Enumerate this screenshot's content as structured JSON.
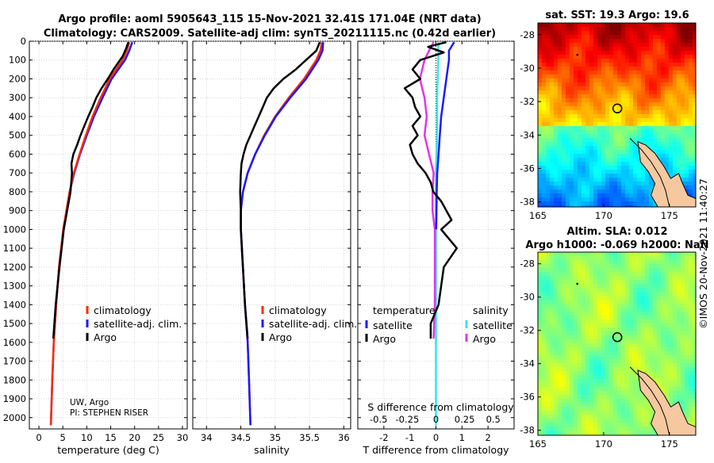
{
  "figure": {
    "title_line1": "Argo profile: aoml 5905643_115 15-Nov-2021 32.41S 171.04E (NRT data)",
    "title_line2": "Climatology: CARS2009. Satellite-adj clim: synTS_20211115.nc (0.42d earlier)",
    "credit_line1": "UW, Argo",
    "credit_line2": "PI: STEPHEN RISER",
    "stamp": "©IMOS 20-Nov-2021 11:40:27"
  },
  "colors": {
    "climatology": "#ff2a00",
    "satellite": "#1a1aff",
    "argo": "#000000",
    "satellite_s": "#33e6e6",
    "argo_s": "#e633e6",
    "land": "#f5c8a0"
  },
  "chart_data": [
    {
      "id": "temperature_profile",
      "type": "line",
      "xlabel": "temperature (deg C)",
      "ylabel": "",
      "xlim": [
        -2,
        31
      ],
      "ylim": [
        2060,
        0
      ],
      "xticks": [
        "0",
        "5",
        "10",
        "15",
        "20",
        "25",
        "30"
      ],
      "xtick_values": [
        0,
        5,
        10,
        15,
        20,
        25,
        30
      ],
      "yticks": [
        "0",
        "100",
        "200",
        "300",
        "400",
        "500",
        "600",
        "700",
        "800",
        "900",
        "1000",
        "1100",
        "1200",
        "1300",
        "1400",
        "1500",
        "1600",
        "1700",
        "1800",
        "1900",
        "2000"
      ],
      "ytick_values": [
        0,
        100,
        200,
        300,
        400,
        500,
        600,
        700,
        800,
        900,
        1000,
        1100,
        1200,
        1300,
        1400,
        1500,
        1600,
        1700,
        1800,
        1900,
        2000
      ],
      "legend": [
        "climatology",
        "satellite-adj. clim.",
        "Argo"
      ],
      "series": [
        {
          "name": "climatology",
          "depth": [
            5,
            50,
            100,
            200,
            300,
            400,
            500,
            600,
            700,
            800,
            1000,
            1200,
            1400,
            1600,
            1800,
            2040
          ],
          "values": [
            18.9,
            18.4,
            17.5,
            14.8,
            12.9,
            11.2,
            9.8,
            8.5,
            7.3,
            6.4,
            5.1,
            4.2,
            3.6,
            3.1,
            2.8,
            2.5
          ]
        },
        {
          "name": "satellite-adj. clim.",
          "depth": [
            5,
            50,
            100,
            200,
            300,
            400,
            500,
            600,
            700,
            800,
            1000,
            1200,
            1400,
            1600,
            1800,
            2040
          ],
          "values": [
            19.5,
            18.9,
            18.0,
            15.2,
            13.3,
            11.5,
            10.0,
            8.6,
            7.4,
            6.4,
            5.1,
            4.2,
            3.6,
            3.1,
            2.8,
            2.5
          ]
        },
        {
          "name": "Argo",
          "depth": [
            5,
            40,
            80,
            150,
            200,
            250,
            300,
            350,
            400,
            450,
            500,
            550,
            600,
            650,
            700,
            800,
            1000,
            1200,
            1400,
            1580
          ],
          "values": [
            18.7,
            18.2,
            17.5,
            15.6,
            14.4,
            13.1,
            12.0,
            11.2,
            10.3,
            9.5,
            8.7,
            8.0,
            7.2,
            6.8,
            6.9,
            6.6,
            5.2,
            4.3,
            3.5,
            3.0
          ]
        }
      ]
    },
    {
      "id": "salinity_profile",
      "type": "line",
      "xlabel": "salinity",
      "ylabel": "",
      "xlim": [
        33.8,
        36.1
      ],
      "ylim": [
        2060,
        0
      ],
      "xticks": [
        "34",
        "34.5",
        "35",
        "35.5",
        "36"
      ],
      "xtick_values": [
        34,
        34.5,
        35,
        35.5,
        36
      ],
      "legend": [
        "climatology",
        "satellite-adj. clim.",
        "Argo"
      ],
      "series": [
        {
          "name": "climatology",
          "depth": [
            5,
            50,
            100,
            200,
            300,
            400,
            500,
            600,
            700,
            800,
            900,
            1000,
            1200,
            1400,
            1600,
            1800,
            2040
          ],
          "values": [
            35.68,
            35.66,
            35.6,
            35.42,
            35.2,
            35.0,
            34.84,
            34.71,
            34.6,
            34.53,
            34.5,
            34.5,
            34.53,
            34.56,
            34.6,
            34.62,
            34.64
          ]
        },
        {
          "name": "satellite-adj. clim.",
          "depth": [
            5,
            50,
            100,
            200,
            300,
            400,
            500,
            600,
            700,
            800,
            900,
            1000,
            1200,
            1400,
            1600,
            1800,
            2040
          ],
          "values": [
            35.7,
            35.69,
            35.63,
            35.45,
            35.22,
            35.01,
            34.85,
            34.71,
            34.6,
            34.53,
            34.5,
            34.5,
            34.53,
            34.56,
            34.6,
            34.62,
            34.64
          ]
        },
        {
          "name": "Argo",
          "depth": [
            5,
            50,
            100,
            150,
            200,
            250,
            300,
            350,
            400,
            450,
            500,
            550,
            600,
            650,
            700,
            800,
            900,
            1000,
            1200,
            1400,
            1580
          ],
          "values": [
            35.65,
            35.6,
            35.45,
            35.3,
            35.12,
            34.98,
            34.88,
            34.82,
            34.76,
            34.7,
            34.64,
            34.58,
            34.54,
            34.51,
            34.5,
            34.49,
            34.5,
            34.5,
            34.53,
            34.56,
            34.6
          ]
        }
      ]
    },
    {
      "id": "difference_profile",
      "type": "line",
      "xlabel": "T difference from climatology",
      "xlabel_top": "S difference from climatology",
      "xlim": [
        -3,
        3
      ],
      "ylim": [
        2060,
        0
      ],
      "xticks": [
        "-2",
        "-1",
        "0",
        "1",
        "2"
      ],
      "xtick_values": [
        -2,
        -1,
        0,
        1,
        2
      ],
      "xticks_s": [
        "-0.5",
        "-0.25",
        "0",
        "0.25",
        "0.5"
      ],
      "xtick_values_s": [
        -0.5,
        -0.25,
        0,
        0.25,
        0.5
      ],
      "legend_t_title": "temperature",
      "legend_s_title": "salinity",
      "legend": [
        "satellite",
        "Argo",
        "satellite",
        "Argo"
      ],
      "series": [
        {
          "name": "T satellite",
          "depth": [
            5,
            50,
            100,
            200,
            300,
            400,
            500,
            600,
            700,
            800,
            900,
            1000
          ],
          "values": [
            0.7,
            0.5,
            0.5,
            0.4,
            0.3,
            0.2,
            0.15,
            0.1,
            0.05,
            0.03,
            0.02,
            0.01
          ]
        },
        {
          "name": "T Argo",
          "depth": [
            5,
            30,
            60,
            100,
            150,
            200,
            250,
            300,
            350,
            400,
            450,
            500,
            550,
            600,
            650,
            700,
            750,
            800,
            850,
            900,
            950,
            1000,
            1100,
            1200,
            1300,
            1400,
            1500,
            1580
          ],
          "values": [
            0.4,
            -0.3,
            0.3,
            -0.6,
            -0.9,
            -0.6,
            -1.2,
            -0.9,
            -0.8,
            -0.6,
            -0.9,
            -0.7,
            -1.0,
            -0.9,
            -0.7,
            -0.4,
            -0.2,
            -0.1,
            0.2,
            0.4,
            0.6,
            0.2,
            0.8,
            0.3,
            0.2,
            0.1,
            -0.2,
            -0.2
          ]
        },
        {
          "name": "S satellite",
          "depth": [
            5,
            100,
            300,
            500,
            700,
            900,
            1100,
            1300,
            1500,
            1700,
            1900,
            2040
          ],
          "values": [
            0.02,
            0.02,
            0.01,
            0.01,
            0.0,
            0.0,
            0.0,
            0.0,
            0.0,
            0.0,
            0.0,
            0.0
          ]
        },
        {
          "name": "S Argo",
          "depth": [
            5,
            50,
            100,
            200,
            300,
            400,
            500,
            600,
            700,
            800,
            900,
            1000,
            1200,
            1400,
            1580
          ],
          "values": [
            -0.02,
            -0.06,
            -0.1,
            -0.14,
            -0.1,
            -0.08,
            -0.1,
            -0.06,
            -0.02,
            -0.03,
            -0.03,
            -0.01,
            -0.01,
            -0.01,
            -0.02
          ]
        }
      ]
    },
    {
      "id": "sst_map",
      "type": "heatmap",
      "title": "sat. SST: 19.3 Argo: 19.6",
      "xlim": [
        165,
        177
      ],
      "ylim": [
        -38.3,
        -27.3
      ],
      "xticks": [
        "165",
        "170",
        "175"
      ],
      "xtick_values": [
        165,
        170,
        175
      ],
      "yticks": [
        "-28",
        "-30",
        "-32",
        "-34",
        "-36",
        "-38"
      ],
      "ytick_values": [
        -28,
        -30,
        -32,
        -34,
        -36,
        -38
      ],
      "marker": {
        "lon": 171.04,
        "lat": -32.41
      }
    },
    {
      "id": "sla_map",
      "type": "heatmap",
      "title_line1": "Altim. SLA: 0.012",
      "title_line2": "Argo h1000: -0.069 h2000: NaN",
      "xlim": [
        165,
        177
      ],
      "ylim": [
        -38.3,
        -27.3
      ],
      "xticks": [
        "165",
        "170",
        "175"
      ],
      "xtick_values": [
        165,
        170,
        175
      ],
      "yticks": [
        "-28",
        "-30",
        "-32",
        "-34",
        "-36",
        "-38"
      ],
      "ytick_values": [
        -28,
        -30,
        -32,
        -34,
        -36,
        -38
      ],
      "marker": {
        "lon": 171.04,
        "lat": -32.41
      }
    }
  ]
}
